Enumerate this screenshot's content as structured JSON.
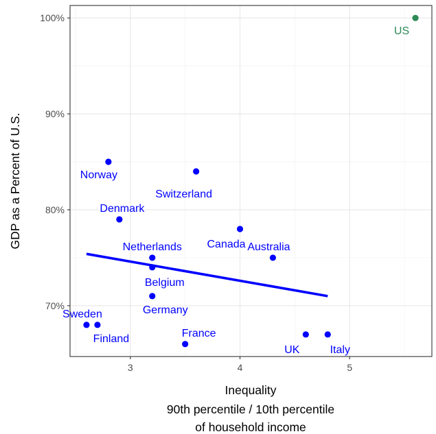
{
  "chart_data": {
    "type": "scatter",
    "title": "",
    "xlabel_lines": [
      "Inequality",
      "90th percentile / 10th percentile",
      "of household income"
    ],
    "ylabel": "GDP as a Percent of U.S.",
    "xlim": [
      2.45,
      5.75
    ],
    "ylim": [
      64.7,
      101.3
    ],
    "xticks": [
      3,
      4,
      5
    ],
    "xtick_labels": [
      "3",
      "4",
      "5"
    ],
    "yticks": [
      70,
      80,
      90,
      100
    ],
    "ytick_labels": [
      "70%",
      "80%",
      "90%",
      "100%"
    ],
    "grid": true,
    "legend": "none",
    "colors": {
      "points": "#0000ff",
      "highlight": "#2e8b57",
      "trend": "#0000ff"
    },
    "points": [
      {
        "label": "Norway",
        "x": 2.8,
        "y": 85,
        "group": "other"
      },
      {
        "label": "Switzerland",
        "x": 3.6,
        "y": 84,
        "group": "other"
      },
      {
        "label": "Denmark",
        "x": 2.9,
        "y": 79,
        "group": "other"
      },
      {
        "label": "Canada",
        "x": 4.0,
        "y": 78,
        "group": "other"
      },
      {
        "label": "Netherlands",
        "x": 3.2,
        "y": 75,
        "group": "other"
      },
      {
        "label": "Australia",
        "x": 4.3,
        "y": 75,
        "group": "other"
      },
      {
        "label": "Belgium",
        "x": 3.2,
        "y": 74,
        "group": "other"
      },
      {
        "label": "Germany",
        "x": 3.2,
        "y": 71,
        "group": "other"
      },
      {
        "label": "Sweden",
        "x": 2.6,
        "y": 68,
        "group": "other"
      },
      {
        "label": "Finland",
        "x": 2.7,
        "y": 68,
        "group": "other"
      },
      {
        "label": "France",
        "x": 3.5,
        "y": 66,
        "group": "other"
      },
      {
        "label": "UK",
        "x": 4.6,
        "y": 67,
        "group": "other"
      },
      {
        "label": "Italy",
        "x": 4.8,
        "y": 67,
        "group": "other"
      },
      {
        "label": "US",
        "x": 5.6,
        "y": 100,
        "group": "us"
      }
    ],
    "trend_line": {
      "x": [
        2.6,
        4.8
      ],
      "y": [
        75.4,
        71.0
      ]
    }
  }
}
